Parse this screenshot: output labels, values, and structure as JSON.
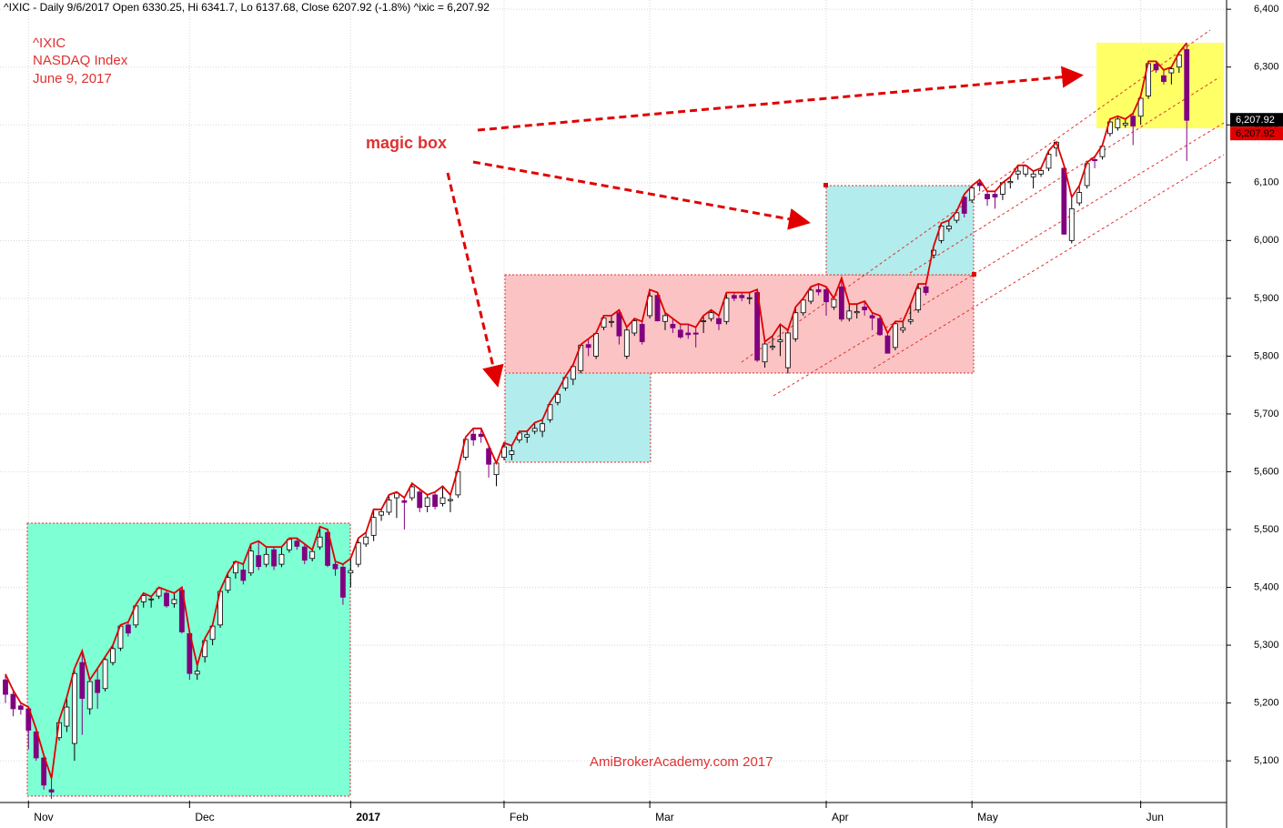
{
  "chart_data": {
    "type": "candlestick",
    "title": "^IXIC - Daily 9/6/2017 Open 6330.25, Hi 6341.7, Lo 6137.68, Close 6207.92 (-1.8%) ^ixic = 6,207.92",
    "annotations": [
      "^IXIC",
      "NASDAQ Index",
      "June 9, 2017",
      "magic box",
      "AmiBrokerAcademy.com 2017"
    ],
    "last_label": {
      "value": 6207.92,
      "label": "6,207.92"
    },
    "up_color": "#ffffff",
    "down_color": "#800080",
    "line_color": "#e00000",
    "ylim": [
      5031,
      6416
    ],
    "yticks": [
      {
        "value": 5100,
        "label": "5,100"
      },
      {
        "value": 5200,
        "label": "5,200"
      },
      {
        "value": 5300,
        "label": "5,300"
      },
      {
        "value": 5400,
        "label": "5,400"
      },
      {
        "value": 5500,
        "label": "5,500"
      },
      {
        "value": 5600,
        "label": "5,600"
      },
      {
        "value": 5700,
        "label": "5,700"
      },
      {
        "value": 5800,
        "label": "5,800"
      },
      {
        "value": 5900,
        "label": "5,900"
      },
      {
        "value": 6000,
        "label": "6,000"
      },
      {
        "value": 6100,
        "label": "6,100"
      },
      {
        "value": 6200,
        "label": "6,200"
      },
      {
        "value": 6300,
        "label": "6,300"
      },
      {
        "value": 6400,
        "label": "6,400"
      }
    ],
    "grid": true,
    "categories": [
      null,
      null,
      null,
      "Nov",
      null,
      null,
      null,
      null,
      null,
      null,
      null,
      null,
      null,
      null,
      null,
      null,
      null,
      null,
      null,
      null,
      null,
      null,
      null,
      null,
      "Dec",
      null,
      null,
      null,
      null,
      null,
      null,
      null,
      null,
      null,
      null,
      null,
      null,
      null,
      null,
      null,
      null,
      null,
      null,
      null,
      null,
      "2017",
      null,
      null,
      null,
      null,
      null,
      null,
      null,
      null,
      null,
      null,
      null,
      null,
      null,
      null,
      null,
      null,
      null,
      null,
      null,
      "Feb",
      null,
      null,
      null,
      null,
      null,
      null,
      null,
      null,
      null,
      null,
      null,
      null,
      null,
      null,
      null,
      null,
      null,
      null,
      "Mar",
      null,
      null,
      null,
      null,
      null,
      null,
      null,
      null,
      null,
      null,
      null,
      null,
      null,
      null,
      null,
      null,
      null,
      null,
      null,
      null,
      null,
      null,
      "Apr",
      null,
      null,
      null,
      null,
      null,
      null,
      null,
      null,
      null,
      null,
      null,
      null,
      null,
      null,
      null,
      null,
      null,
      null,
      "May",
      null,
      null,
      null,
      null,
      null,
      null,
      null,
      null,
      null,
      null,
      null,
      null,
      null,
      null,
      null,
      null,
      null,
      null,
      null,
      null,
      null,
      "Jun",
      null,
      null,
      null,
      null,
      null,
      null
    ],
    "ohlc": [
      [
        5240,
        5250,
        5200,
        5215
      ],
      [
        5215,
        5222,
        5177,
        5190
      ],
      [
        5195,
        5200,
        5180,
        5189
      ],
      [
        5190,
        5193,
        5120,
        5153
      ],
      [
        5150,
        5155,
        5100,
        5105
      ],
      [
        5105,
        5110,
        5050,
        5058
      ],
      [
        5050,
        5070,
        5034,
        5046
      ],
      [
        5140,
        5170,
        5135,
        5166
      ],
      [
        5160,
        5210,
        5150,
        5193
      ],
      [
        5130,
        5260,
        5100,
        5251
      ],
      [
        5270,
        5290,
        5145,
        5208
      ],
      [
        5190,
        5240,
        5180,
        5237
      ],
      [
        5240,
        5260,
        5190,
        5218
      ],
      [
        5225,
        5280,
        5220,
        5275
      ],
      [
        5270,
        5300,
        5265,
        5294
      ],
      [
        5295,
        5335,
        5290,
        5333
      ],
      [
        5335,
        5340,
        5315,
        5321
      ],
      [
        5335,
        5370,
        5330,
        5368
      ],
      [
        5375,
        5390,
        5365,
        5386
      ],
      [
        5380,
        5384,
        5365,
        5380
      ],
      [
        5385,
        5400,
        5380,
        5398
      ],
      [
        5390,
        5395,
        5365,
        5368
      ],
      [
        5372,
        5390,
        5365,
        5379
      ],
      [
        5395,
        5400,
        5320,
        5323
      ],
      [
        5320,
        5323,
        5240,
        5251
      ],
      [
        5250,
        5265,
        5240,
        5255
      ],
      [
        5280,
        5312,
        5270,
        5308
      ],
      [
        5310,
        5335,
        5300,
        5333
      ],
      [
        5335,
        5395,
        5330,
        5393
      ],
      [
        5395,
        5425,
        5390,
        5417
      ],
      [
        5425,
        5445,
        5415,
        5444
      ],
      [
        5430,
        5440,
        5405,
        5412
      ],
      [
        5425,
        5475,
        5420,
        5463
      ],
      [
        5455,
        5480,
        5430,
        5436
      ],
      [
        5440,
        5470,
        5435,
        5457
      ],
      [
        5465,
        5470,
        5430,
        5437
      ],
      [
        5440,
        5470,
        5435,
        5457
      ],
      [
        5465,
        5485,
        5460,
        5483
      ],
      [
        5480,
        5485,
        5465,
        5471
      ],
      [
        5470,
        5475,
        5440,
        5447
      ],
      [
        5450,
        5465,
        5445,
        5462
      ],
      [
        5470,
        5505,
        5465,
        5487
      ],
      [
        5495,
        5500,
        5435,
        5438
      ],
      [
        5440,
        5445,
        5420,
        5432
      ],
      [
        5435,
        5440,
        5370,
        5383
      ],
      [
        5425,
        5450,
        5400,
        5429
      ],
      [
        5440,
        5485,
        5435,
        5477
      ],
      [
        5475,
        5495,
        5470,
        5487
      ],
      [
        5490,
        5535,
        5480,
        5521
      ],
      [
        5525,
        5535,
        5515,
        5531
      ],
      [
        5530,
        5560,
        5525,
        5551
      ],
      [
        5555,
        5565,
        5520,
        5563
      ],
      [
        5550,
        5555,
        5500,
        5547
      ],
      [
        5555,
        5580,
        5550,
        5574
      ],
      [
        5565,
        5570,
        5530,
        5538
      ],
      [
        5540,
        5560,
        5530,
        5555
      ],
      [
        5560,
        5565,
        5535,
        5540
      ],
      [
        5545,
        5575,
        5540,
        5555
      ],
      [
        5550,
        5560,
        5530,
        5552
      ],
      [
        5560,
        5605,
        5555,
        5600
      ],
      [
        5625,
        5660,
        5620,
        5656
      ],
      [
        5665,
        5675,
        5645,
        5655
      ],
      [
        5665,
        5675,
        5650,
        5661
      ],
      [
        5640,
        5645,
        5590,
        5613
      ],
      [
        5595,
        5615,
        5575,
        5615
      ],
      [
        5625,
        5650,
        5620,
        5643
      ],
      [
        5630,
        5645,
        5620,
        5636
      ],
      [
        5655,
        5670,
        5650,
        5667
      ],
      [
        5660,
        5670,
        5650,
        5664
      ],
      [
        5670,
        5685,
        5665,
        5675
      ],
      [
        5670,
        5690,
        5660,
        5683
      ],
      [
        5690,
        5720,
        5685,
        5716
      ],
      [
        5720,
        5740,
        5715,
        5734
      ],
      [
        5745,
        5765,
        5740,
        5763
      ],
      [
        5760,
        5785,
        5750,
        5782
      ],
      [
        5775,
        5820,
        5770,
        5819
      ],
      [
        5820,
        5830,
        5800,
        5815
      ],
      [
        5800,
        5840,
        5795,
        5839
      ],
      [
        5850,
        5870,
        5845,
        5866
      ],
      [
        5860,
        5870,
        5850,
        5860
      ],
      [
        5875,
        5880,
        5820,
        5835
      ],
      [
        5800,
        5850,
        5795,
        5845
      ],
      [
        5840,
        5865,
        5835,
        5861
      ],
      [
        5855,
        5860,
        5820,
        5825
      ],
      [
        5870,
        5915,
        5865,
        5904
      ],
      [
        5905,
        5910,
        5860,
        5861
      ],
      [
        5860,
        5875,
        5845,
        5870
      ],
      [
        5855,
        5865,
        5840,
        5849
      ],
      [
        5845,
        5855,
        5830,
        5833
      ],
      [
        5840,
        5855,
        5830,
        5837
      ],
      [
        5840,
        5850,
        5815,
        5838
      ],
      [
        5860,
        5870,
        5840,
        5861
      ],
      [
        5865,
        5880,
        5860,
        5875
      ],
      [
        5865,
        5870,
        5845,
        5856
      ],
      [
        5860,
        5910,
        5855,
        5900
      ],
      [
        5905,
        5910,
        5895,
        5900
      ],
      [
        5905,
        5910,
        5895,
        5901
      ],
      [
        5900,
        5910,
        5890,
        5901
      ],
      [
        5910,
        5915,
        5790,
        5793
      ],
      [
        5790,
        5825,
        5780,
        5821
      ],
      [
        5815,
        5835,
        5810,
        5817
      ],
      [
        5825,
        5855,
        5800,
        5828
      ],
      [
        5780,
        5845,
        5770,
        5840
      ],
      [
        5830,
        5885,
        5825,
        5875
      ],
      [
        5875,
        5900,
        5870,
        5897
      ],
      [
        5895,
        5920,
        5890,
        5914
      ],
      [
        5915,
        5925,
        5905,
        5911
      ],
      [
        5915,
        5920,
        5870,
        5894
      ],
      [
        5885,
        5900,
        5880,
        5898
      ],
      [
        5920,
        5935,
        5860,
        5864
      ],
      [
        5865,
        5890,
        5860,
        5878
      ],
      [
        5875,
        5890,
        5865,
        5877
      ],
      [
        5885,
        5895,
        5870,
        5880
      ],
      [
        5870,
        5875,
        5845,
        5866
      ],
      [
        5865,
        5870,
        5835,
        5837
      ],
      [
        5835,
        5840,
        5805,
        5805
      ],
      [
        5815,
        5860,
        5810,
        5856
      ],
      [
        5845,
        5860,
        5840,
        5849
      ],
      [
        5860,
        5890,
        5855,
        5863
      ],
      [
        5880,
        5925,
        5875,
        5917
      ],
      [
        5920,
        5925,
        5905,
        5910
      ],
      [
        5975,
        5990,
        5970,
        5983
      ],
      [
        6000,
        6030,
        5995,
        6025
      ],
      [
        6020,
        6035,
        6015,
        6025
      ],
      [
        6035,
        6050,
        6030,
        6048
      ],
      [
        6075,
        6080,
        6040,
        6047
      ],
      [
        6070,
        6095,
        6065,
        6091
      ],
      [
        6100,
        6105,
        6085,
        6095
      ],
      [
        6080,
        6085,
        6060,
        6072
      ],
      [
        6080,
        6085,
        6055,
        6075
      ],
      [
        6080,
        6100,
        6070,
        6100
      ],
      [
        6100,
        6110,
        6090,
        6102
      ],
      [
        6115,
        6130,
        6105,
        6120
      ],
      [
        6115,
        6130,
        6110,
        6129
      ],
      [
        6110,
        6120,
        6090,
        6115
      ],
      [
        6115,
        6125,
        6110,
        6121
      ],
      [
        6125,
        6155,
        6120,
        6149
      ],
      [
        6160,
        6170,
        6145,
        6170
      ],
      [
        6125,
        6130,
        6010,
        6011
      ],
      [
        6000,
        6075,
        5995,
        6055
      ],
      [
        6065,
        6095,
        6060,
        6083
      ],
      [
        6095,
        6135,
        6090,
        6133
      ],
      [
        6140,
        6145,
        6125,
        6138
      ],
      [
        6145,
        6165,
        6140,
        6163
      ],
      [
        6185,
        6210,
        6180,
        6205
      ],
      [
        6195,
        6215,
        6190,
        6210
      ],
      [
        6200,
        6210,
        6195,
        6203
      ],
      [
        6215,
        6220,
        6165,
        6198
      ],
      [
        6215,
        6250,
        6200,
        6246
      ],
      [
        6250,
        6310,
        6245,
        6306
      ],
      [
        6305,
        6310,
        6290,
        6295
      ],
      [
        6285,
        6295,
        6270,
        6275
      ],
      [
        6290,
        6300,
        6270,
        6297
      ],
      [
        6300,
        6325,
        6290,
        6321
      ],
      [
        6330.25,
        6341.7,
        6137.68,
        6207.92
      ]
    ]
  }
}
